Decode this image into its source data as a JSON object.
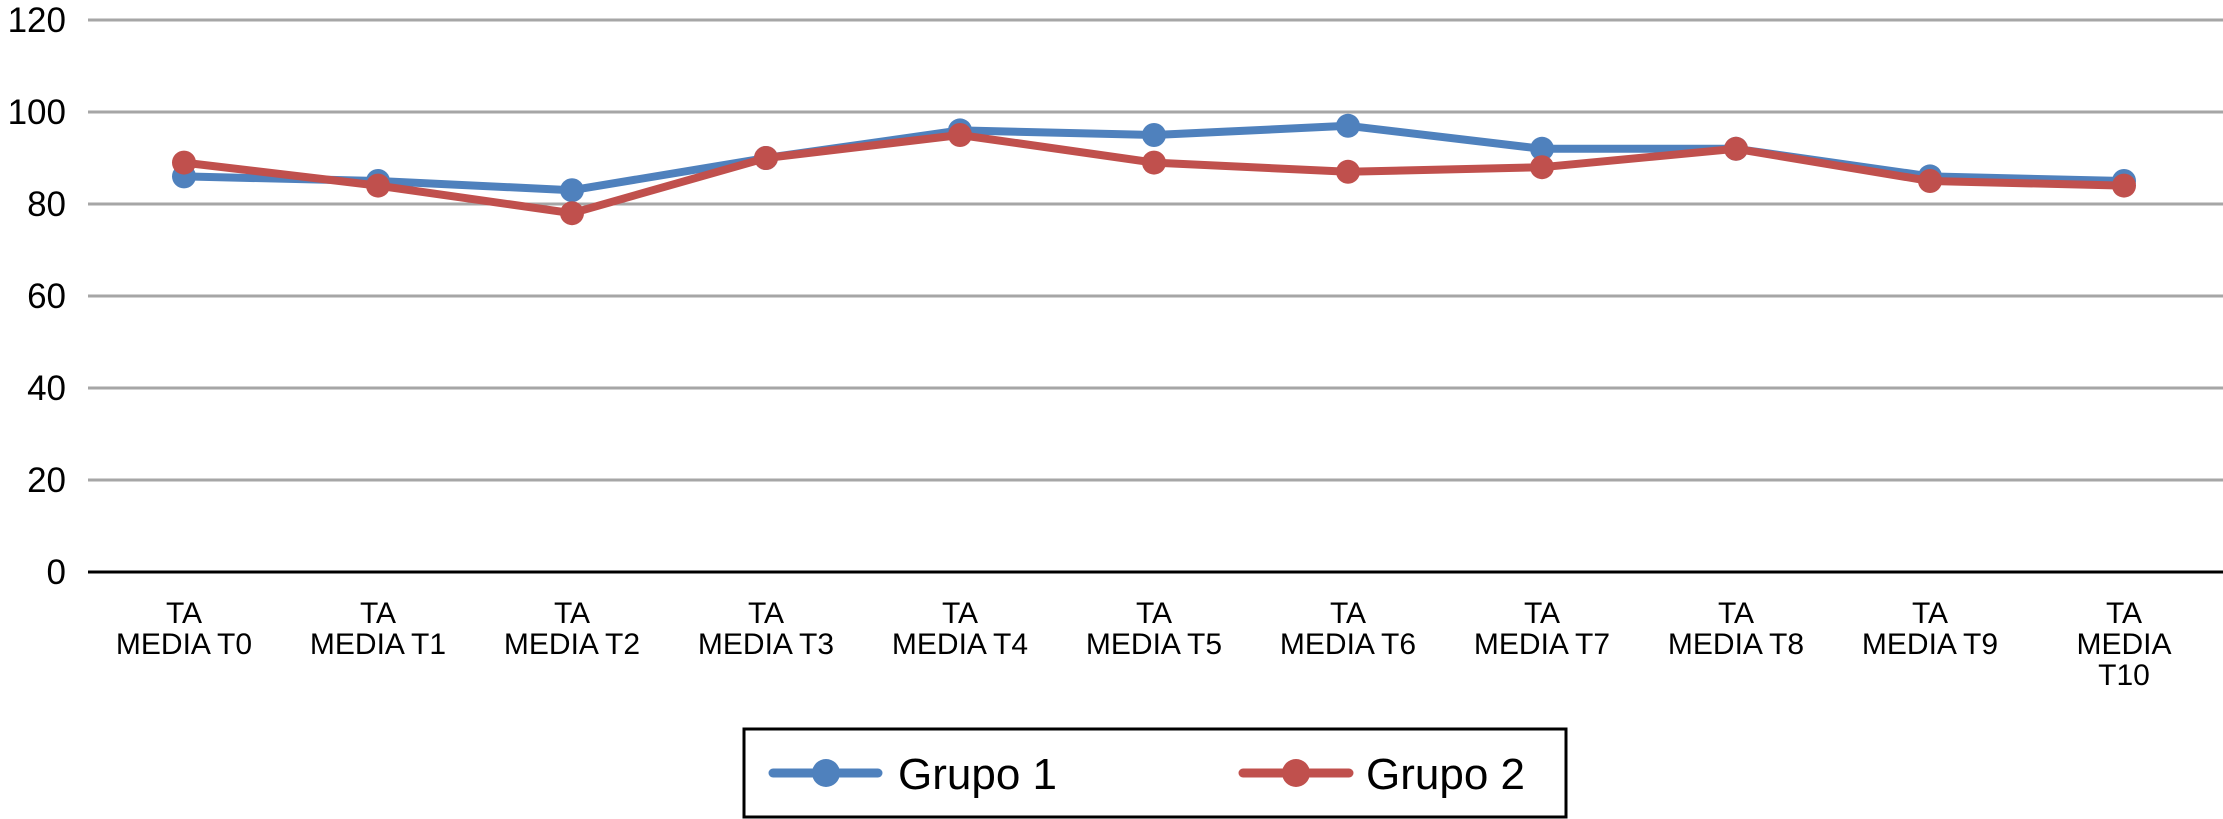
{
  "chart_data": {
    "type": "line",
    "title": "",
    "xlabel": "",
    "ylabel": "",
    "ylim": [
      0,
      120
    ],
    "yticks": [
      0,
      20,
      40,
      60,
      80,
      100,
      120
    ],
    "grid": true,
    "legend_position": "bottom",
    "categories": [
      [
        "TA",
        "MEDIA T0"
      ],
      [
        "TA",
        "MEDIA T1"
      ],
      [
        "TA",
        "MEDIA T2"
      ],
      [
        "TA",
        "MEDIA T3"
      ],
      [
        "TA",
        "MEDIA T4"
      ],
      [
        "TA",
        "MEDIA T5"
      ],
      [
        "TA",
        "MEDIA T6"
      ],
      [
        "TA",
        "MEDIA T7"
      ],
      [
        "TA",
        "MEDIA T8"
      ],
      [
        "TA",
        "MEDIA T9"
      ],
      [
        "TA",
        "MEDIA",
        "T10"
      ]
    ],
    "series": [
      {
        "name": "Grupo 1",
        "color": "#4F81BD",
        "values": [
          86,
          85,
          83,
          90,
          96,
          95,
          97,
          92,
          92,
          86,
          85
        ]
      },
      {
        "name": "Grupo 2",
        "color": "#C0504D",
        "values": [
          89,
          84,
          78,
          90,
          95,
          89,
          87,
          88,
          92,
          85,
          84
        ]
      }
    ]
  }
}
